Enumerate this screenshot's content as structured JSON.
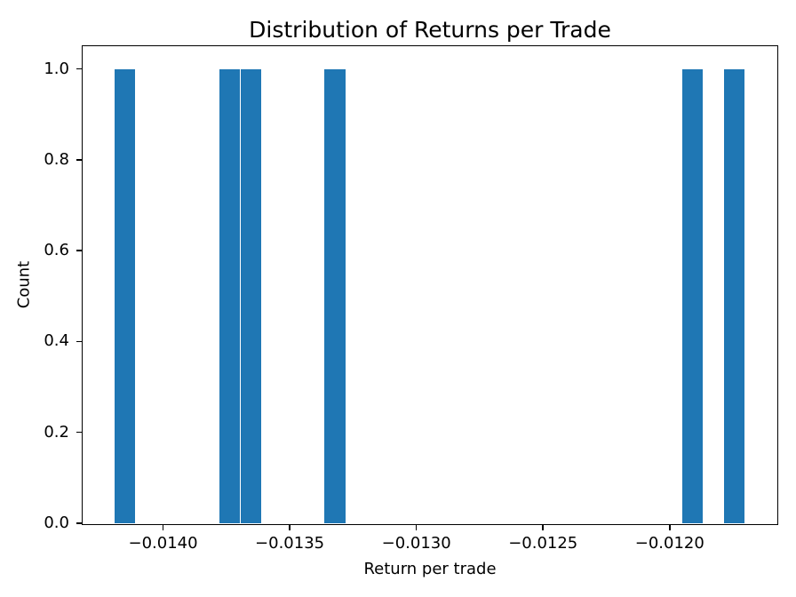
{
  "window": {
    "background": "#ffffff"
  },
  "chart_data": {
    "type": "bar",
    "subtype": "histogram",
    "title": "Distribution of Returns per Trade",
    "xlabel": "Return per trade",
    "ylabel": "Count",
    "bar_color": "#1f77b4",
    "axis_color": "#000000",
    "text_color": "#000000",
    "grid": false,
    "legend": false,
    "xlim": [
      -0.0143175,
      -0.0115785
    ],
    "ylim": [
      0,
      1.05
    ],
    "n_bins": 30,
    "bin_start": -0.014193,
    "bin_width": 8.3e-05,
    "bin_counts": [
      1,
      0,
      0,
      0,
      0,
      1,
      1,
      0,
      0,
      0,
      1,
      0,
      0,
      0,
      0,
      0,
      0,
      0,
      0,
      0,
      0,
      0,
      0,
      0,
      0,
      0,
      0,
      1,
      0,
      1
    ],
    "bars": [
      {
        "x0": -0.014193,
        "x1": -0.01411,
        "count": 1
      },
      {
        "x0": -0.013778,
        "x1": -0.013695,
        "count": 1
      },
      {
        "x0": -0.013695,
        "x1": -0.013612,
        "count": 1
      },
      {
        "x0": -0.013363,
        "x1": -0.01328,
        "count": 1
      },
      {
        "x0": -0.011952,
        "x1": -0.011869,
        "count": 1
      },
      {
        "x0": -0.011786,
        "x1": -0.011703,
        "count": 1
      }
    ],
    "x_ticks": [
      {
        "value": -0.014,
        "label": "−0.0140"
      },
      {
        "value": -0.0135,
        "label": "−0.0135"
      },
      {
        "value": -0.013,
        "label": "−0.0130"
      },
      {
        "value": -0.0125,
        "label": "−0.0125"
      },
      {
        "value": -0.012,
        "label": "−0.0120"
      }
    ],
    "y_ticks": [
      {
        "value": 0.0,
        "label": "0.0"
      },
      {
        "value": 0.2,
        "label": "0.2"
      },
      {
        "value": 0.4,
        "label": "0.4"
      },
      {
        "value": 0.6,
        "label": "0.6"
      },
      {
        "value": 0.8,
        "label": "0.8"
      },
      {
        "value": 1.0,
        "label": "1.0"
      }
    ]
  }
}
